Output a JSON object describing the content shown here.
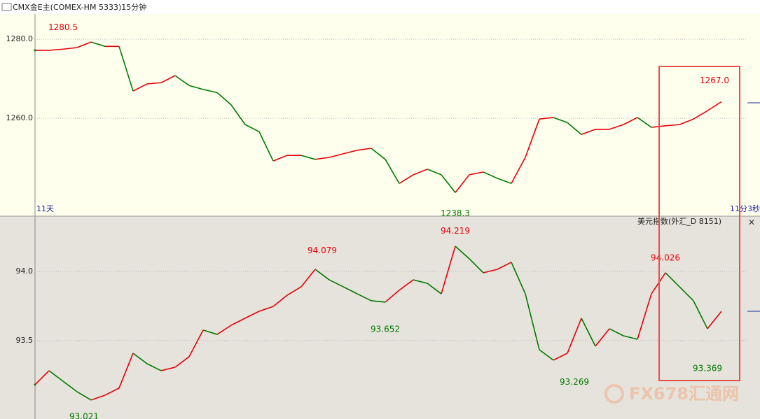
{
  "watermark": "FX678汇通网",
  "chart_data": [
    {
      "type": "line",
      "title": "CMX金E主(COMEX-HM 5333)15分钟",
      "x_labels": [
        "11天",
        "11分3秒"
      ],
      "up_color": "#e8000b",
      "down_color": "#007a00",
      "xlim": [
        0,
        50.75
      ],
      "ylim": [
        1235.4,
        1286.4
      ],
      "yticks": [
        {
          "value": 1260,
          "label": "1260.0"
        },
        {
          "value": 1280,
          "label": "1280.0"
        }
      ],
      "grid": true,
      "values": [
        1277.2,
        1277.2,
        1277.5,
        1277.9,
        1279.3,
        1278.2,
        1278.2,
        1266.9,
        1268.7,
        1269,
        1270.8,
        1268.3,
        1267.3,
        1266.5,
        1263.4,
        1258.4,
        1256.6,
        1249.2,
        1250.6,
        1250.6,
        1249.6,
        1250.1,
        1251,
        1251.9,
        1252.4,
        1249.6,
        1243.5,
        1245.7,
        1247.1,
        1245.7,
        1241.2,
        1245.7,
        1246.4,
        1244.8,
        1243.5,
        1250.1,
        1259.8,
        1260.2,
        1258.9,
        1255.9,
        1257.2,
        1257.2,
        1258.4,
        1260.2,
        1257.7,
        1258.1,
        1258.4,
        1259.8,
        1261.9,
        1264.2
      ],
      "annotations": [
        {
          "at": 2,
          "value": 1280.5,
          "color": "#e8000b",
          "position": "above"
        },
        {
          "at": 30,
          "value": 1238.3,
          "color": "#007a00",
          "position": "below"
        },
        {
          "at": 48.5,
          "value": 1267,
          "label": "1267.0",
          "color": "#e8000b",
          "position": "above"
        }
      ]
    },
    {
      "type": "line",
      "title": "美元指数(外汇_D 8151)",
      "up_color": "#e8000b",
      "down_color": "#007a00",
      "xlim": [
        0,
        50.75
      ],
      "ylim": [
        92.934,
        94.394
      ],
      "yticks": [
        {
          "value": 93.5,
          "label": "93.5"
        },
        {
          "value": 94,
          "label": "94.0"
        }
      ],
      "grid": true,
      "values": [
        93.182,
        93.283,
        93.207,
        93.131,
        93.071,
        93.106,
        93.157,
        93.409,
        93.333,
        93.283,
        93.308,
        93.384,
        93.576,
        93.545,
        93.611,
        93.662,
        93.712,
        93.747,
        93.828,
        93.889,
        94.015,
        93.939,
        93.889,
        93.838,
        93.788,
        93.778,
        93.864,
        93.939,
        93.914,
        93.838,
        94.182,
        94.091,
        93.99,
        94.015,
        94.066,
        93.838,
        93.434,
        93.359,
        93.409,
        93.662,
        93.46,
        93.586,
        93.535,
        93.51,
        93.838,
        93.99,
        93.889,
        93.788,
        93.586,
        93.712
      ],
      "annotations": [
        {
          "at": 3.5,
          "value": 93.021,
          "color": "#007a00",
          "position": "below"
        },
        {
          "at": 20.5,
          "value": 94.079,
          "color": "#e8000b",
          "position": "above"
        },
        {
          "at": 25,
          "value": 93.652,
          "color": "#007a00",
          "position": "below"
        },
        {
          "at": 30,
          "value": 94.219,
          "color": "#e8000b",
          "position": "above"
        },
        {
          "at": 38.5,
          "value": 93.269,
          "color": "#007a00",
          "position": "below"
        },
        {
          "at": 45,
          "value": 94.026,
          "color": "#e8000b",
          "position": "above"
        },
        {
          "at": 48,
          "value": 93.369,
          "color": "#007a00",
          "position": "below"
        }
      ]
    }
  ]
}
